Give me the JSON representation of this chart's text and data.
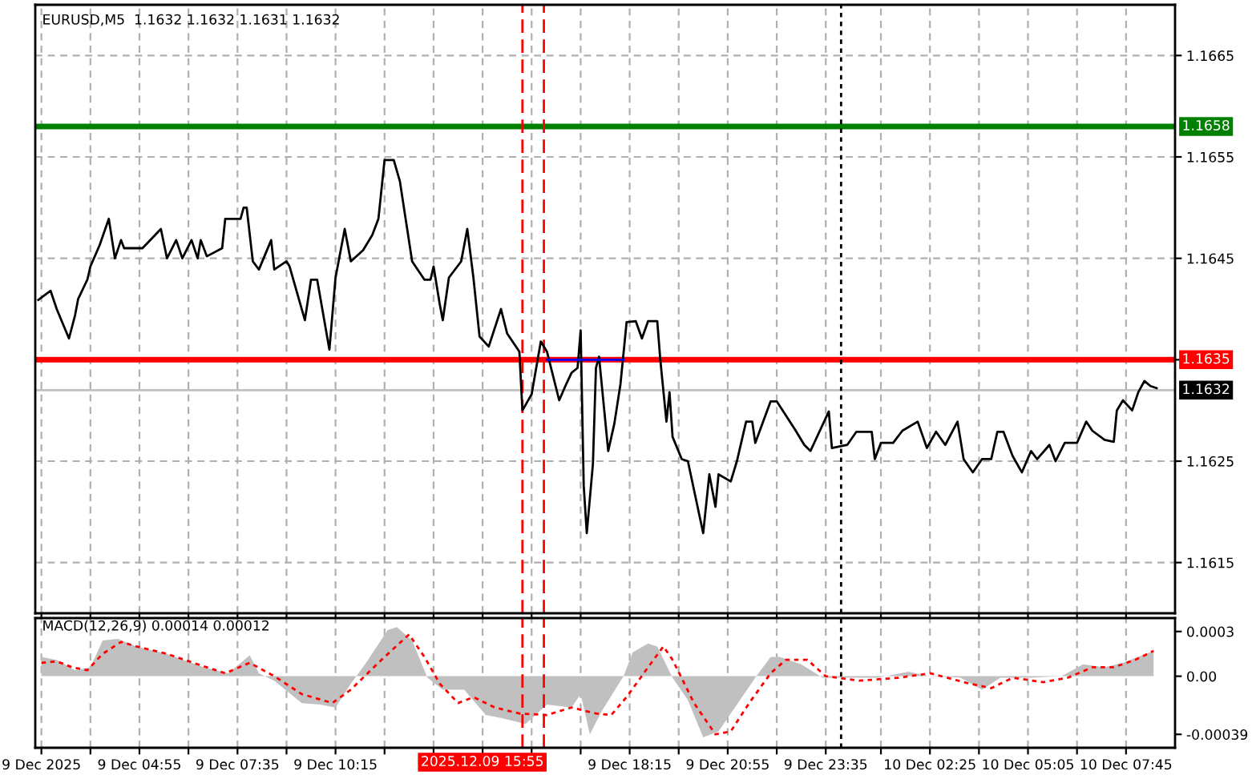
{
  "chart_data": [
    {
      "type": "line",
      "title": "EURUSD,M5  1.1632 1.1632 1.1631 1.1632",
      "xlim": [
        "2025-12-09T02:05",
        "2025-12-10T09:05"
      ],
      "ylim": [
        1.161,
        1.167
      ],
      "xticks": [
        {
          "value": "2025-12-09T02:15",
          "label": null
        },
        {
          "value": "2025-12-09T03:35",
          "label": null
        },
        {
          "value": "2025-12-09T04:55",
          "label": null
        },
        {
          "value": "2025-12-09T06:15",
          "label": null
        },
        {
          "value": "2025-12-09T07:35",
          "label": null
        },
        {
          "value": "2025-12-09T08:55",
          "label": null
        },
        {
          "value": "2025-12-09T10:15",
          "label": null
        },
        {
          "value": "2025-12-09T11:35",
          "label": null
        },
        {
          "value": "2025-12-09T12:55",
          "label": null
        },
        {
          "value": "2025-12-09T14:15",
          "label": null
        },
        {
          "value": "2025-12-09T15:35",
          "label": null
        },
        {
          "value": "2025-12-09T16:55",
          "label": null
        },
        {
          "value": "2025-12-09T18:15",
          "label": null
        },
        {
          "value": "2025-12-09T19:35",
          "label": null
        },
        {
          "value": "2025-12-09T20:55",
          "label": null
        },
        {
          "value": "2025-12-09T22:15",
          "label": null
        },
        {
          "value": "2025-12-09T23:35",
          "label": null
        },
        {
          "value": "2025-12-10T01:05",
          "label": null
        },
        {
          "value": "2025-12-10T02:25",
          "label": null
        },
        {
          "value": "2025-12-10T03:45",
          "label": null
        },
        {
          "value": "2025-12-10T05:05",
          "label": null
        },
        {
          "value": "2025-12-10T06:25",
          "label": null
        },
        {
          "value": "2025-12-10T07:45",
          "label": null
        }
      ],
      "yticks": [
        1.1615,
        1.1625,
        {
          "value": 1.1635,
          "label": null
        },
        1.1645,
        1.1655,
        1.1665
      ],
      "tick_labels": "y",
      "grid": true,
      "series": [
        {
          "color": "#000000",
          "x": [
            "2025-12-09T02:10",
            "2025-12-09T02:30",
            "2025-12-09T02:40",
            "2025-12-09T03:00",
            "2025-12-09T03:10",
            "2025-12-09T03:15",
            "2025-12-09T03:30",
            "2025-12-09T03:35",
            "2025-12-09T03:50",
            "2025-12-09T04:05",
            "2025-12-09T04:15",
            "2025-12-09T04:25",
            "2025-12-09T04:30",
            "2025-12-09T05:00",
            "2025-12-09T05:30",
            "2025-12-09T05:40",
            "2025-12-09T05:55",
            "2025-12-09T06:05",
            "2025-12-09T06:20",
            "2025-12-09T06:30",
            "2025-12-09T06:35",
            "2025-12-09T06:45",
            "2025-12-09T07:10",
            "2025-12-09T07:15",
            "2025-12-09T07:40",
            "2025-12-09T07:45",
            "2025-12-09T07:50",
            "2025-12-09T08:00",
            "2025-12-09T08:10",
            "2025-12-09T08:30",
            "2025-12-09T08:35",
            "2025-12-09T08:55",
            "2025-12-09T09:00",
            "2025-12-09T09:25",
            "2025-12-09T09:35",
            "2025-12-09T09:45",
            "2025-12-09T10:05",
            "2025-12-09T10:15",
            "2025-12-09T10:30",
            "2025-12-09T10:40",
            "2025-12-09T11:00",
            "2025-12-09T11:15",
            "2025-12-09T11:25",
            "2025-12-09T11:35",
            "2025-12-09T11:50",
            "2025-12-09T12:00",
            "2025-12-09T12:20",
            "2025-12-09T12:40",
            "2025-12-09T12:50",
            "2025-12-09T12:55",
            "2025-12-09T13:05",
            "2025-12-09T13:10",
            "2025-12-09T13:20",
            "2025-12-09T13:40",
            "2025-12-09T13:50",
            "2025-12-09T14:00",
            "2025-12-09T14:10",
            "2025-12-09T14:25",
            "2025-12-09T14:45",
            "2025-12-09T14:55",
            "2025-12-09T15:15",
            "2025-12-09T15:20",
            "2025-12-09T15:35",
            "2025-12-09T15:50",
            "2025-12-09T16:00",
            "2025-12-09T16:20",
            "2025-12-09T16:30",
            "2025-12-09T16:40",
            "2025-12-09T16:50",
            "2025-12-09T16:55",
            "2025-12-09T17:00",
            "2025-12-09T17:05",
            "2025-12-09T17:15",
            "2025-12-09T17:20",
            "2025-12-09T17:25",
            "2025-12-09T17:40",
            "2025-12-09T17:50",
            "2025-12-09T18:00",
            "2025-12-09T18:10",
            "2025-12-09T18:25",
            "2025-12-09T18:35",
            "2025-12-09T18:45",
            "2025-12-09T19:00",
            "2025-12-09T19:05",
            "2025-12-09T19:15",
            "2025-12-09T19:20",
            "2025-12-09T19:25",
            "2025-12-09T19:40",
            "2025-12-09T19:50",
            "2025-12-09T20:15",
            "2025-12-09T20:25",
            "2025-12-09T20:35",
            "2025-12-09T20:40",
            "2025-12-09T21:00",
            "2025-12-09T21:10",
            "2025-12-09T21:25",
            "2025-12-09T21:35",
            "2025-12-09T21:40",
            "2025-12-09T22:05",
            "2025-12-09T22:15",
            "2025-12-09T22:45",
            "2025-12-09T23:00",
            "2025-12-09T23:10",
            "2025-12-09T23:40",
            "2025-12-09T23:45",
            "2025-12-10T00:10",
            "2025-12-10T00:25",
            "2025-12-10T00:50",
            "2025-12-10T00:55",
            "2025-12-10T01:05",
            "2025-12-10T01:25",
            "2025-12-10T01:40",
            "2025-12-10T02:05",
            "2025-12-10T02:20",
            "2025-12-10T02:35",
            "2025-12-10T02:50",
            "2025-12-10T03:10",
            "2025-12-10T03:20",
            "2025-12-10T03:35",
            "2025-12-10T03:50",
            "2025-12-10T04:05",
            "2025-12-10T04:15",
            "2025-12-10T04:25",
            "2025-12-10T04:40",
            "2025-12-10T04:55",
            "2025-12-10T05:10",
            "2025-12-10T05:20",
            "2025-12-10T05:40",
            "2025-12-10T05:50",
            "2025-12-10T06:05",
            "2025-12-10T06:25",
            "2025-12-10T06:40",
            "2025-12-10T06:50",
            "2025-12-10T07:10",
            "2025-12-10T07:25",
            "2025-12-10T07:30",
            "2025-12-10T07:40",
            "2025-12-10T07:55",
            "2025-12-10T08:05",
            "2025-12-10T08:15",
            "2025-12-10T08:25",
            "2025-12-10T08:35"
          ],
          "values": [
            1.16409,
            1.16418,
            1.164,
            1.16371,
            1.16394,
            1.1641,
            1.16429,
            1.16442,
            1.16463,
            1.16489,
            1.1645,
            1.16468,
            1.1646,
            1.1646,
            1.16479,
            1.1645,
            1.16468,
            1.1645,
            1.16468,
            1.1645,
            1.16468,
            1.16452,
            1.1646,
            1.16489,
            1.16489,
            1.165,
            1.165,
            1.16447,
            1.16439,
            1.16468,
            1.16439,
            1.16447,
            1.16442,
            1.16389,
            1.16429,
            1.16429,
            1.1636,
            1.16431,
            1.16479,
            1.16447,
            1.16458,
            1.16473,
            1.16489,
            1.16547,
            1.16547,
            1.16526,
            1.16447,
            1.16429,
            1.16429,
            1.16442,
            1.16405,
            1.16389,
            1.16431,
            1.16447,
            1.16479,
            1.16431,
            1.16373,
            1.16363,
            1.164,
            1.16376,
            1.16358,
            1.163,
            1.16316,
            1.16368,
            1.16358,
            1.1631,
            1.16324,
            1.16337,
            1.16342,
            1.16379,
            1.16226,
            1.16179,
            1.16247,
            1.16342,
            1.16353,
            1.1626,
            1.16287,
            1.16326,
            1.16387,
            1.16388,
            1.16371,
            1.16388,
            1.16388,
            1.1635,
            1.16289,
            1.16318,
            1.16274,
            1.16252,
            1.1625,
            1.16179,
            1.16237,
            1.16205,
            1.16237,
            1.1623,
            1.1625,
            1.16289,
            1.16289,
            1.16268,
            1.16309,
            1.16309,
            1.16281,
            1.16266,
            1.1626,
            1.16299,
            1.16263,
            1.16266,
            1.16279,
            1.16279,
            1.16252,
            1.16268,
            1.16268,
            1.1628,
            1.16289,
            1.16263,
            1.16279,
            1.16266,
            1.16289,
            1.16252,
            1.16239,
            1.16252,
            1.16252,
            1.16279,
            1.16279,
            1.16255,
            1.16239,
            1.1626,
            1.16252,
            1.16266,
            1.1625,
            1.16268,
            1.16268,
            1.16289,
            1.1628,
            1.16271,
            1.16269,
            1.163,
            1.1631,
            1.163,
            1.16318,
            1.16329,
            1.16324,
            1.16322
          ]
        },
        {
          "color": "#0000ff",
          "x": [
            "2025-12-09T16:00",
            "2025-12-09T18:05"
          ],
          "values": [
            1.1635,
            1.1635
          ]
        }
      ],
      "ref_lines": [
        {
          "axis": "y",
          "value": 1.1658,
          "label": "1.1658",
          "color": "#008000",
          "line_style": "solid"
        },
        {
          "axis": "y",
          "value": 1.1635,
          "label": "1.1635",
          "color": "#ff0000",
          "line_style": "solid"
        },
        {
          "axis": "y",
          "value": 1.1632,
          "label": "1.1632",
          "color": "#c0c0c0",
          "line_style": "solid"
        },
        {
          "axis": "x",
          "value": "2025-12-09T15:20",
          "color": "#ff0000",
          "line_style": "dashed"
        },
        {
          "axis": "x",
          "value": "2025-12-09T15:55",
          "color": "#ff0000",
          "line_style": "dashed"
        },
        {
          "axis": "x",
          "value": "2025-12-10T00:00",
          "color": "#000000",
          "line_style": "dotted"
        }
      ]
    },
    {
      "type": "area",
      "title": "MACD(12,26,9) 0.00014 0.00012",
      "xlim": [
        "2025-12-09T02:05",
        "2025-12-10T09:05"
      ],
      "ylim": [
        -0.00048,
        0.00039
      ],
      "xticks": [
        {
          "value": "2025-12-09T02:15",
          "label": "9 Dec 2025"
        },
        {
          "value": "2025-12-09T03:35",
          "label": null
        },
        {
          "value": "2025-12-09T04:55",
          "label": "9 Dec 04:55"
        },
        {
          "value": "2025-12-09T06:15",
          "label": null
        },
        {
          "value": "2025-12-09T07:35",
          "label": "9 Dec 07:35"
        },
        {
          "value": "2025-12-09T08:55",
          "label": null
        },
        {
          "value": "2025-12-09T10:15",
          "label": "9 Dec 10:15"
        },
        {
          "value": "2025-12-09T11:35",
          "label": null
        },
        {
          "value": "2025-12-09T12:55",
          "label": null
        },
        {
          "value": "2025-12-09T14:15",
          "label": null
        },
        {
          "value": "2025-12-09T15:35",
          "label": null
        },
        {
          "value": "2025-12-09T16:55",
          "label": null
        },
        {
          "value": "2025-12-09T18:15",
          "label": "9 Dec 18:15"
        },
        {
          "value": "2025-12-09T19:35",
          "label": null
        },
        {
          "value": "2025-12-09T20:55",
          "label": "9 Dec 20:55"
        },
        {
          "value": "2025-12-09T22:15",
          "label": null
        },
        {
          "value": "2025-12-09T23:35",
          "label": "9 Dec 23:35"
        },
        {
          "value": "2025-12-10T01:05",
          "label": null
        },
        {
          "value": "2025-12-10T02:25",
          "label": "10 Dec 02:25"
        },
        {
          "value": "2025-12-10T03:45",
          "label": null
        },
        {
          "value": "2025-12-10T05:05",
          "label": "10 Dec 05:05"
        },
        {
          "value": "2025-12-10T06:25",
          "label": null
        },
        {
          "value": "2025-12-10T07:45",
          "label": "10 Dec 07:45"
        }
      ],
      "yticks": [
        {
          "value": -0.00039,
          "label": "-0.00039"
        },
        {
          "value": 0,
          "label": "0.00"
        },
        0.0003
      ],
      "grid": "x",
      "series": [
        {
          "color": "#c0c0c0",
          "x": [
            "2025-12-09T02:15",
            "2025-12-09T02:40",
            "2025-12-09T03:10",
            "2025-12-09T03:35",
            "2025-12-09T03:55",
            "2025-12-09T04:20",
            "2025-12-09T04:50",
            "2025-12-09T05:40",
            "2025-12-09T06:40",
            "2025-12-09T07:20",
            "2025-12-09T07:55",
            "2025-12-09T08:10",
            "2025-12-09T08:35",
            "2025-12-09T09:20",
            "2025-12-09T09:50",
            "2025-12-09T10:15",
            "2025-12-09T10:40",
            "2025-12-09T11:05",
            "2025-12-09T11:40",
            "2025-12-09T11:55",
            "2025-12-09T12:20",
            "2025-12-09T12:45",
            "2025-12-09T13:10",
            "2025-12-09T13:45",
            "2025-12-09T14:20",
            "2025-12-09T14:45",
            "2025-12-09T15:25",
            "2025-12-09T16:00",
            "2025-12-09T16:40",
            "2025-12-09T16:55",
            "2025-12-09T17:10",
            "2025-12-09T17:30",
            "2025-12-09T18:05",
            "2025-12-09T18:20",
            "2025-12-09T18:45",
            "2025-12-09T19:00",
            "2025-12-09T19:25",
            "2025-12-09T19:50",
            "2025-12-09T20:15",
            "2025-12-09T20:40",
            "2025-12-09T21:15",
            "2025-12-09T21:40",
            "2025-12-09T22:05",
            "2025-12-09T22:20",
            "2025-12-09T22:55",
            "2025-12-09T23:30",
            "2025-12-10T00:10",
            "2025-12-10T01:00",
            "2025-12-10T01:50",
            "2025-12-10T02:25",
            "2025-12-10T03:15",
            "2025-12-10T03:50",
            "2025-12-10T04:20",
            "2025-12-10T05:10",
            "2025-12-10T06:00",
            "2025-12-10T06:35",
            "2025-12-10T07:10",
            "2025-12-10T07:40",
            "2025-12-10T08:30"
          ],
          "values": [
            0.00013,
            0.00011,
            4e-05,
            6e-05,
            0.00024,
            0.00025,
            0.0002,
            0.00015,
            6e-05,
            2e-05,
            0.00014,
            2e-05,
            -3e-05,
            -0.00018,
            -0.00019,
            -0.00021,
            -5e-05,
            9e-05,
            0.00031,
            0.00033,
            0.00024,
            -1e-05,
            -9e-05,
            -9e-05,
            -0.00026,
            -0.00028,
            -0.00032,
            -0.00019,
            -0.00021,
            -0.00012,
            -0.00039,
            -0.00023,
            0.0,
            0.00016,
            0.00022,
            0.0002,
            -1e-05,
            -0.00016,
            -0.00041,
            -0.00037,
            -0.00016,
            -1e-05,
            0.00013,
            0.00013,
            8e-05,
            -1e-05,
            -1e-05,
            -1e-05,
            3e-05,
            0.0,
            -1e-05,
            -9e-05,
            -1e-05,
            -1e-05,
            0.0,
            8e-05,
            6e-05,
            9e-05,
            0.00017
          ]
        },
        {
          "type": "line",
          "line_style": "dotted",
          "color": "#ff0000",
          "x": [
            "2025-12-09T02:15",
            "2025-12-09T02:40",
            "2025-12-09T03:05",
            "2025-12-09T03:30",
            "2025-12-09T03:55",
            "2025-12-09T04:25",
            "2025-12-09T04:50",
            "2025-12-09T05:40",
            "2025-12-09T06:30",
            "2025-12-09T07:15",
            "2025-12-09T07:55",
            "2025-12-09T08:35",
            "2025-12-09T09:20",
            "2025-12-09T10:10",
            "2025-12-09T10:40",
            "2025-12-09T11:30",
            "2025-12-09T12:15",
            "2025-12-09T12:40",
            "2025-12-09T13:05",
            "2025-12-09T13:35",
            "2025-12-09T14:00",
            "2025-12-09T14:35",
            "2025-12-09T15:15",
            "2025-12-09T16:00",
            "2025-12-09T16:40",
            "2025-12-09T17:20",
            "2025-12-09T17:45",
            "2025-12-09T18:10",
            "2025-12-09T18:45",
            "2025-12-09T19:10",
            "2025-12-09T19:25",
            "2025-12-09T20:00",
            "2025-12-09T20:35",
            "2025-12-09T21:00",
            "2025-12-09T21:30",
            "2025-12-09T22:05",
            "2025-12-09T22:30",
            "2025-12-09T23:05",
            "2025-12-09T23:35",
            "2025-12-10T00:30",
            "2025-12-10T01:35",
            "2025-12-10T02:25",
            "2025-12-10T03:30",
            "2025-12-10T04:05",
            "2025-12-10T04:40",
            "2025-12-10T05:30",
            "2025-12-10T06:10",
            "2025-12-10T06:50",
            "2025-12-10T07:25",
            "2025-12-10T08:00",
            "2025-12-10T08:30"
          ],
          "values": [
            9e-05,
            0.0001,
            6e-05,
            4e-05,
            0.00015,
            0.00023,
            0.0002,
            0.00015,
            8e-05,
            2e-05,
            9e-05,
            0.0,
            -0.00012,
            -0.00018,
            -9e-05,
            0.00011,
            0.00028,
            0.00013,
            -5e-05,
            -0.00018,
            -0.00014,
            -0.00021,
            -0.00025,
            -0.00026,
            -0.00021,
            -0.00025,
            -0.00026,
            -0.00014,
            6e-05,
            0.0002,
            0.00011,
            -0.00018,
            -0.00039,
            -0.00037,
            -0.00018,
            2e-05,
            0.00011,
            0.00011,
            0.0,
            -3e-05,
            -1e-05,
            2e-05,
            -5e-05,
            -8e-05,
            -1e-05,
            -4e-05,
            -1e-05,
            6e-05,
            6e-05,
            0.00011,
            0.00017
          ]
        }
      ],
      "ref_lines": [
        {
          "axis": "x",
          "value": "2025-12-09T15:20",
          "color": "#ff0000",
          "line_style": "dashed"
        },
        {
          "axis": "x",
          "value": "2025-12-09T15:55",
          "label": "2025.12.09 15:55",
          "color": "#ff0000",
          "line_style": "dashed"
        },
        {
          "axis": "x",
          "value": "2025-12-10T00:00",
          "color": "#000000",
          "line_style": "dotted"
        }
      ]
    }
  ]
}
